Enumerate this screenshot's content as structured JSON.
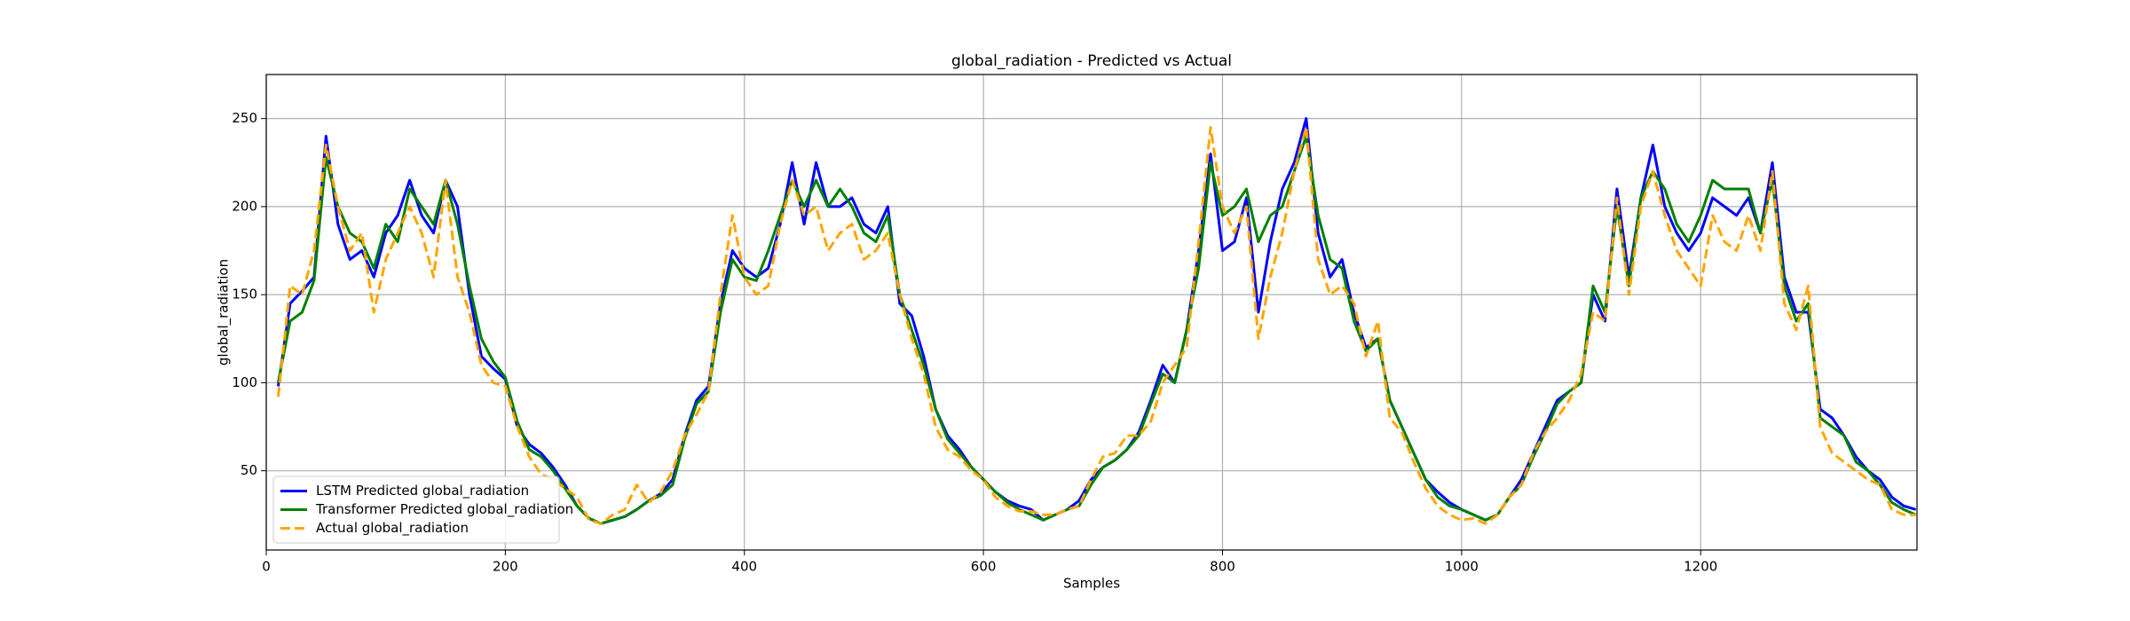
{
  "chart_data": {
    "type": "line",
    "title": "global_radiation - Predicted vs Actual",
    "x_label": "Samples",
    "y_label": "global_radiation",
    "xlim": [
      0,
      1381
    ],
    "ylim": [
      5,
      275
    ],
    "xticks": [
      0,
      200,
      400,
      600,
      800,
      1000,
      1200
    ],
    "yticks": [
      50,
      100,
      150,
      200,
      250
    ],
    "grid": true,
    "legend": "lower left",
    "x": [
      10,
      20,
      30,
      40,
      50,
      60,
      70,
      80,
      90,
      100,
      110,
      120,
      130,
      140,
      150,
      160,
      170,
      180,
      190,
      200,
      210,
      220,
      230,
      240,
      250,
      260,
      270,
      280,
      290,
      300,
      310,
      320,
      330,
      340,
      350,
      360,
      370,
      380,
      390,
      400,
      410,
      420,
      430,
      440,
      450,
      460,
      470,
      480,
      490,
      500,
      510,
      520,
      530,
      540,
      550,
      560,
      570,
      580,
      590,
      600,
      610,
      620,
      630,
      640,
      650,
      660,
      670,
      680,
      690,
      700,
      710,
      720,
      730,
      740,
      750,
      760,
      770,
      780,
      790,
      800,
      810,
      820,
      830,
      840,
      850,
      860,
      870,
      880,
      890,
      900,
      910,
      920,
      930,
      940,
      950,
      960,
      970,
      980,
      990,
      1000,
      1010,
      1020,
      1030,
      1040,
      1050,
      1060,
      1070,
      1080,
      1090,
      1100,
      1110,
      1120,
      1130,
      1140,
      1150,
      1160,
      1170,
      1180,
      1190,
      1200,
      1210,
      1220,
      1230,
      1240,
      1250,
      1260,
      1270,
      1280,
      1290,
      1300,
      1310,
      1320,
      1330,
      1340,
      1350,
      1360,
      1370,
      1380
    ],
    "series": [
      {
        "name": "LSTM Predicted global_radiation",
        "color": "#0000ff",
        "linestyle": "solid",
        "values": [
          98,
          145,
          152,
          160,
          240,
          190,
          170,
          175,
          160,
          185,
          195,
          215,
          195,
          185,
          215,
          200,
          150,
          115,
          108,
          102,
          75,
          65,
          60,
          52,
          42,
          30,
          23,
          20,
          22,
          24,
          28,
          33,
          37,
          45,
          70,
          90,
          98,
          145,
          175,
          165,
          160,
          165,
          190,
          225,
          190,
          225,
          200,
          200,
          205,
          190,
          185,
          200,
          145,
          138,
          115,
          85,
          70,
          62,
          52,
          45,
          38,
          33,
          30,
          28,
          22,
          25,
          28,
          33,
          45,
          52,
          56,
          62,
          72,
          90,
          110,
          100,
          130,
          175,
          230,
          175,
          180,
          205,
          140,
          180,
          210,
          225,
          250,
          185,
          160,
          170,
          140,
          120,
          125,
          90,
          75,
          60,
          45,
          38,
          32,
          28,
          25,
          22,
          25,
          35,
          45,
          60,
          75,
          90,
          95,
          100,
          150,
          135,
          210,
          160,
          205,
          235,
          200,
          185,
          175,
          185,
          205,
          200,
          195,
          205,
          185,
          225,
          160,
          140,
          140,
          85,
          80,
          70,
          58,
          50,
          45,
          35,
          30,
          28
        ]
      },
      {
        "name": "Transformer Predicted global_radiation",
        "color": "#008000",
        "linestyle": "solid",
        "values": [
          100,
          135,
          140,
          158,
          228,
          200,
          185,
          180,
          165,
          190,
          180,
          210,
          200,
          190,
          215,
          190,
          155,
          125,
          112,
          103,
          78,
          62,
          58,
          50,
          40,
          30,
          23,
          20,
          22,
          24,
          28,
          33,
          36,
          42,
          68,
          88,
          95,
          140,
          170,
          160,
          158,
          175,
          195,
          215,
          200,
          215,
          200,
          210,
          200,
          185,
          180,
          195,
          150,
          130,
          110,
          85,
          68,
          60,
          52,
          45,
          38,
          32,
          28,
          25,
          22,
          25,
          28,
          30,
          42,
          52,
          56,
          62,
          70,
          88,
          105,
          100,
          130,
          165,
          225,
          195,
          200,
          210,
          180,
          195,
          200,
          220,
          240,
          195,
          170,
          165,
          135,
          118,
          125,
          90,
          75,
          60,
          45,
          35,
          30,
          28,
          25,
          22,
          25,
          35,
          42,
          58,
          72,
          88,
          95,
          100,
          155,
          140,
          200,
          155,
          205,
          220,
          210,
          190,
          180,
          195,
          215,
          210,
          210,
          210,
          185,
          215,
          155,
          135,
          145,
          80,
          75,
          70,
          55,
          50,
          42,
          32,
          28,
          25
        ]
      },
      {
        "name": "Actual global_radiation",
        "color": "#ffa500",
        "linestyle": "dashed",
        "values": [
          92,
          155,
          150,
          175,
          235,
          200,
          175,
          185,
          140,
          170,
          185,
          200,
          185,
          160,
          215,
          160,
          140,
          110,
          100,
          98,
          75,
          58,
          48,
          45,
          40,
          35,
          22,
          20,
          25,
          28,
          42,
          32,
          38,
          50,
          70,
          82,
          95,
          150,
          195,
          160,
          150,
          155,
          190,
          215,
          195,
          200,
          175,
          185,
          190,
          170,
          175,
          185,
          150,
          125,
          105,
          75,
          62,
          58,
          50,
          45,
          35,
          30,
          27,
          27,
          25,
          25,
          28,
          30,
          45,
          58,
          60,
          70,
          70,
          78,
          100,
          110,
          120,
          180,
          245,
          200,
          185,
          200,
          125,
          160,
          185,
          220,
          245,
          170,
          150,
          155,
          145,
          115,
          135,
          80,
          72,
          55,
          40,
          30,
          25,
          22,
          23,
          20,
          25,
          35,
          42,
          60,
          72,
          80,
          90,
          105,
          140,
          135,
          205,
          150,
          200,
          220,
          195,
          175,
          165,
          155,
          195,
          180,
          175,
          195,
          175,
          220,
          145,
          130,
          155,
          75,
          60,
          55,
          50,
          45,
          42,
          28,
          25,
          25
        ]
      }
    ]
  }
}
